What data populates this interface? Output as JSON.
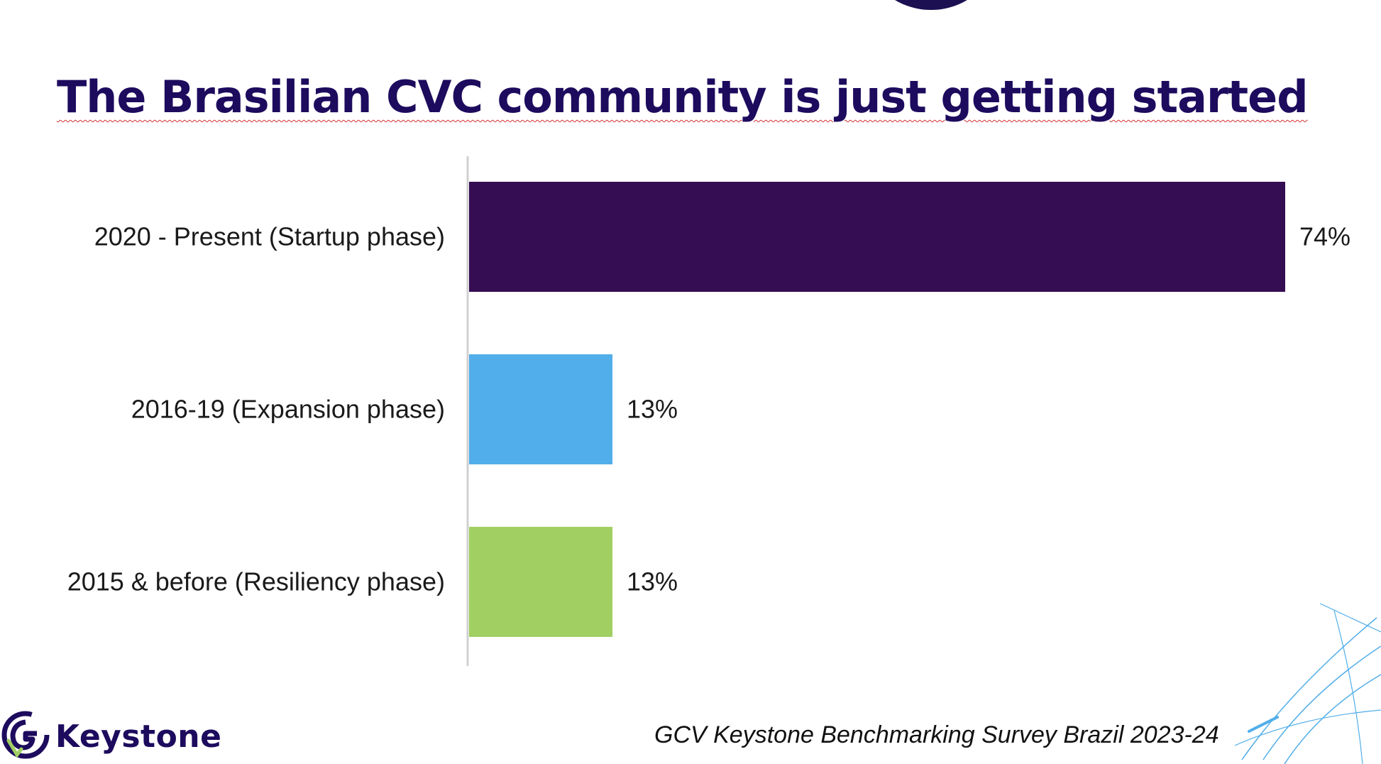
{
  "title": "The Brasilian CVC community is just getting started",
  "source": "GCV Keystone Benchmarking Survey Brazil 2023-24",
  "logo": {
    "text": "Keystone",
    "icon": "keystone-logo-icon"
  },
  "colors": {
    "title": "#1d0b5e",
    "bar_1": "#350d52",
    "bar_2": "#52aeea",
    "bar_3": "#a1cf62",
    "axis": "#d0d0d0"
  },
  "chart_data": {
    "type": "bar",
    "orientation": "horizontal",
    "categories": [
      "2020 - Present (Startup phase)",
      "2016-19 (Expansion phase)",
      "2015 & before (Resiliency phase)"
    ],
    "values": [
      74,
      13,
      13
    ],
    "value_labels": [
      "74%",
      "13%",
      "13%"
    ],
    "bar_colors": [
      "#350d52",
      "#52aeea",
      "#a1cf62"
    ],
    "xlim": [
      0,
      74
    ],
    "grid": false,
    "legend": "none"
  }
}
